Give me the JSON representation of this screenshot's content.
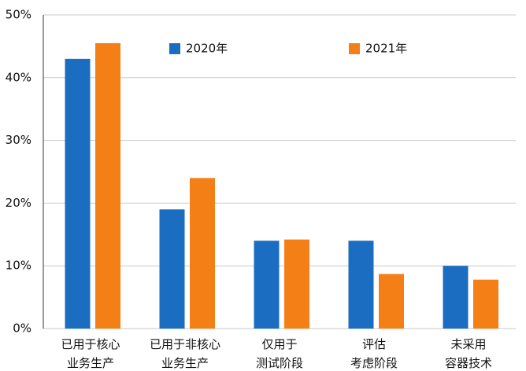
{
  "chart_data": {
    "type": "bar",
    "categories": [
      "已用于核心\n业务生产",
      "已用于非核心\n业务生产",
      "仅用于\n测试阶段",
      "评估\n考虑阶段",
      "未采用\n容器技术"
    ],
    "series": [
      {
        "name": "2020年",
        "color": "#1a6dc0",
        "values": [
          43,
          19,
          14,
          14,
          10
        ]
      },
      {
        "name": "2021年",
        "color": "#f57f17",
        "values": [
          45.5,
          24,
          14.2,
          8.7,
          7.8
        ]
      }
    ],
    "ylim": [
      0,
      50
    ],
    "yticks": [
      {
        "value": 0,
        "label": "0%"
      },
      {
        "value": 10,
        "label": "10%"
      },
      {
        "value": 20,
        "label": "20%"
      },
      {
        "value": 30,
        "label": "30%"
      },
      {
        "value": 40,
        "label": "40%"
      },
      {
        "value": 50,
        "label": "50%"
      }
    ],
    "grid": true
  }
}
